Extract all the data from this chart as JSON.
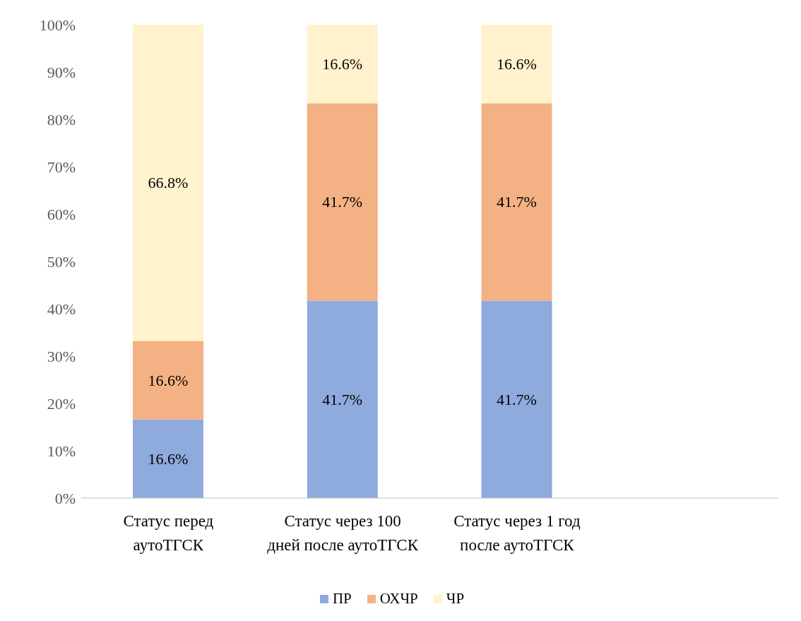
{
  "chart_data": {
    "type": "bar",
    "stacked": true,
    "categories": [
      "Статус перед аутоТГСК",
      "Статус через 100 дней после аутоТГСК",
      "Статус через 1 год после аутоТГСК",
      null
    ],
    "series": [
      {
        "name": "ПР",
        "color": "#8faadc",
        "values": [
          16.6,
          41.7,
          41.7,
          null
        ],
        "value_labels": [
          "16.6%",
          "41.7%",
          "41.7%",
          null
        ]
      },
      {
        "name": "ОХЧР",
        "color": "#f4b183",
        "values": [
          16.6,
          41.7,
          41.7,
          null
        ],
        "value_labels": [
          "16.6%",
          "41.7%",
          "41.7%",
          null
        ]
      },
      {
        "name": "ЧР",
        "color": "#fff2cc",
        "values": [
          66.8,
          16.6,
          16.6,
          null
        ],
        "value_labels": [
          "66.8%",
          "16.6%",
          "16.6%",
          null
        ]
      }
    ],
    "ylim": [
      0,
      100
    ],
    "yticks": [
      {
        "value": 0,
        "label": "0%"
      },
      {
        "value": 10,
        "label": "10%"
      },
      {
        "value": 20,
        "label": "20%"
      },
      {
        "value": 30,
        "label": "30%"
      },
      {
        "value": 40,
        "label": "40%"
      },
      {
        "value": 50,
        "label": "50%"
      },
      {
        "value": 60,
        "label": "60%"
      },
      {
        "value": 70,
        "label": "70%"
      },
      {
        "value": 80,
        "label": "80%"
      },
      {
        "value": 90,
        "label": "90%"
      },
      {
        "value": 100,
        "label": "100%"
      }
    ],
    "grid": false,
    "legend": "bottom"
  }
}
